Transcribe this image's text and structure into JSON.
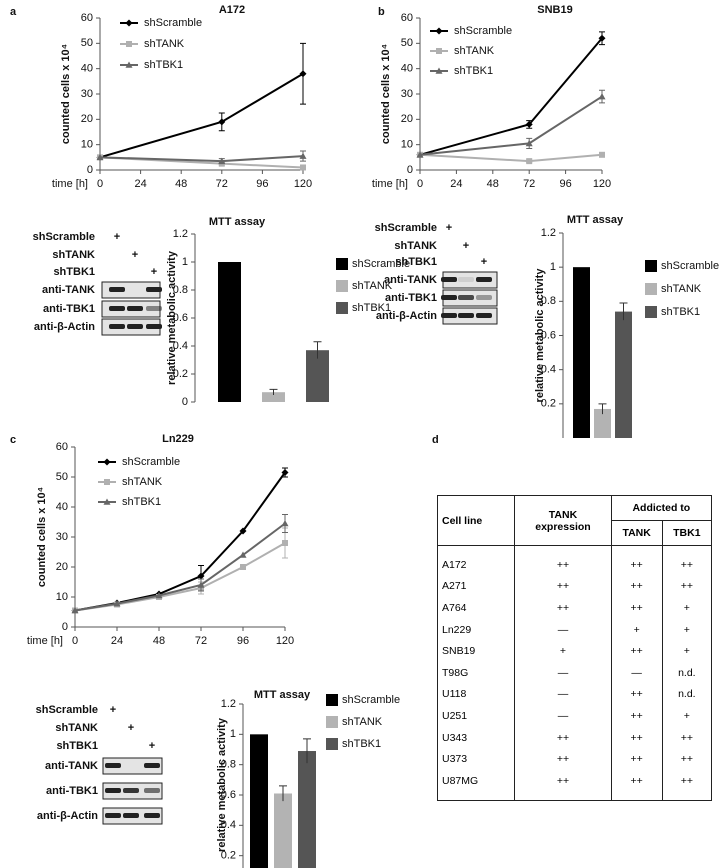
{
  "panel_labels": [
    "a",
    "b",
    "c",
    "d"
  ],
  "chart_data": [
    {
      "type": "line",
      "title": "A172",
      "x_label": "time [h]",
      "y_label": "counted cells x 10⁴",
      "x": [
        0,
        72,
        120
      ],
      "xlim": [
        0,
        120
      ],
      "xticks": [
        0,
        24,
        48,
        72,
        96,
        120
      ],
      "ylim": [
        0,
        60
      ],
      "yticks": [
        0,
        10,
        20,
        30,
        40,
        50,
        60
      ],
      "series": [
        {
          "name": "shScramble",
          "color": "#000000",
          "marker": "diamond",
          "values": [
            5,
            19,
            38
          ],
          "errors": [
            null,
            3.5,
            12
          ]
        },
        {
          "name": "shTANK",
          "color": "#b0b0b0",
          "marker": "square",
          "values": [
            5,
            2.5,
            1
          ],
          "errors": [
            null,
            0.5,
            null
          ]
        },
        {
          "name": "shTBK1",
          "color": "#666666",
          "marker": "triangle",
          "values": [
            5,
            3.5,
            5.5
          ],
          "errors": [
            null,
            1,
            2
          ]
        }
      ]
    },
    {
      "type": "bar",
      "title": "MTT assay",
      "y_label": "relative metabolic activity",
      "categories": [
        "shScramble",
        "shTANK",
        "shTBK1"
      ],
      "values": [
        1,
        0.07,
        0.37
      ],
      "errors": [
        0,
        0.02,
        0.06
      ],
      "colors": [
        "#000000",
        "#b3b3b3",
        "#555555"
      ],
      "ylim": [
        0,
        1.2
      ],
      "yticks": [
        0,
        0.2,
        0.4,
        0.6,
        0.8,
        1,
        1.2
      ]
    },
    {
      "type": "line",
      "title": "SNB19",
      "x_label": "time [h]",
      "y_label": "counted cells x 10⁴",
      "x": [
        0,
        72,
        120
      ],
      "xlim": [
        0,
        120
      ],
      "xticks": [
        0,
        24,
        48,
        72,
        96,
        120
      ],
      "ylim": [
        0,
        60
      ],
      "yticks": [
        0,
        10,
        20,
        30,
        40,
        50,
        60
      ],
      "series": [
        {
          "name": "shScramble",
          "color": "#000000",
          "marker": "diamond",
          "values": [
            6,
            18,
            52
          ],
          "errors": [
            null,
            1.5,
            2.5
          ]
        },
        {
          "name": "shTANK",
          "color": "#b0b0b0",
          "marker": "square",
          "values": [
            6,
            3.5,
            6
          ],
          "errors": [
            null,
            0.5,
            0.5
          ]
        },
        {
          "name": "shTBK1",
          "color": "#666666",
          "marker": "triangle",
          "values": [
            6,
            10.5,
            29
          ],
          "errors": [
            null,
            2,
            2.5
          ]
        }
      ]
    },
    {
      "type": "bar",
      "title": "MTT assay",
      "y_label": "relative metabolic activity",
      "categories": [
        "shScramble",
        "shTANK",
        "shTBK1"
      ],
      "values": [
        1,
        0.17,
        0.74
      ],
      "errors": [
        0,
        0.03,
        0.05
      ],
      "colors": [
        "#000000",
        "#b3b3b3",
        "#555555"
      ],
      "ylim": [
        0,
        1.2
      ],
      "yticks": [
        0.2,
        0.4,
        0.6,
        0.8,
        1,
        1.2
      ]
    },
    {
      "type": "line",
      "title": "Ln229",
      "x_label": "time [h]",
      "y_label": "counted cells x 10⁴",
      "x": [
        0,
        24,
        48,
        72,
        96,
        120
      ],
      "xlim": [
        0,
        120
      ],
      "xticks": [
        0,
        24,
        48,
        72,
        96,
        120
      ],
      "ylim": [
        0,
        60
      ],
      "yticks": [
        0,
        10,
        20,
        30,
        40,
        50,
        60
      ],
      "series": [
        {
          "name": "shScramble",
          "color": "#000000",
          "marker": "diamond",
          "values": [
            5.5,
            8,
            11,
            17,
            32,
            51.5
          ],
          "errors": [
            null,
            null,
            null,
            3.5,
            null,
            1.5
          ]
        },
        {
          "name": "shTANK",
          "color": "#b0b0b0",
          "marker": "square",
          "values": [
            5.5,
            7.5,
            10,
            13,
            20,
            28
          ],
          "errors": [
            null,
            null,
            null,
            2,
            null,
            5
          ]
        },
        {
          "name": "shTBK1",
          "color": "#666666",
          "marker": "triangle",
          "values": [
            5.5,
            7.8,
            10.5,
            14,
            24,
            34.5
          ],
          "errors": [
            null,
            null,
            null,
            2,
            null,
            3
          ]
        }
      ]
    },
    {
      "type": "bar",
      "title": "MTT assay",
      "y_label": "relative metabolic activity",
      "categories": [
        "shScramble",
        "shTANK",
        "shTBK1"
      ],
      "values": [
        1,
        0.61,
        0.89
      ],
      "errors": [
        0,
        0.05,
        0.08
      ],
      "colors": [
        "#000000",
        "#b3b3b3",
        "#555555"
      ],
      "ylim": [
        0,
        1.2
      ],
      "yticks": [
        0.2,
        0.4,
        0.6,
        0.8,
        1,
        1.2
      ]
    }
  ],
  "blots": [
    {
      "rows": [
        "shScramble",
        "shTANK",
        "shTBK1"
      ],
      "marks": [
        "+",
        "+",
        "+"
      ],
      "antibodies": [
        "anti-TANK",
        "anti-TBK1",
        "anti-β-Actin"
      ]
    },
    {
      "rows": [
        "shScramble",
        "shTANK",
        "shTBK1"
      ],
      "marks": [
        "+",
        "+",
        "+"
      ],
      "antibodies": [
        "anti-TANK",
        "anti-TBK1",
        "anti-β-Actin"
      ]
    },
    {
      "rows": [
        "shScramble",
        "shTANK",
        "shTBK1"
      ],
      "marks": [
        "+",
        "+",
        "+"
      ],
      "antibodies": [
        "anti-TANK",
        "anti-TBK1",
        "anti-β-Actin"
      ]
    }
  ],
  "table": {
    "header": [
      "Cell line",
      "TANK\nexpression",
      "Addicted to",
      "TANK",
      "TBK1"
    ],
    "rows": [
      [
        "A172",
        "++",
        "++",
        "++"
      ],
      [
        "A271",
        "++",
        "++",
        "++"
      ],
      [
        "A764",
        "++",
        "++",
        "+"
      ],
      [
        "Ln229",
        "—",
        "+",
        "+"
      ],
      [
        "SNB19",
        "+",
        "++",
        "+"
      ],
      [
        "T98G",
        "—",
        "—",
        "n.d."
      ],
      [
        "U118",
        "—",
        "++",
        "n.d."
      ],
      [
        "U251",
        "—",
        "++",
        "+"
      ],
      [
        "U343",
        "++",
        "++",
        "++"
      ],
      [
        "U373",
        "++",
        "++",
        "++"
      ],
      [
        "U87MG",
        "++",
        "++",
        "++"
      ]
    ]
  }
}
